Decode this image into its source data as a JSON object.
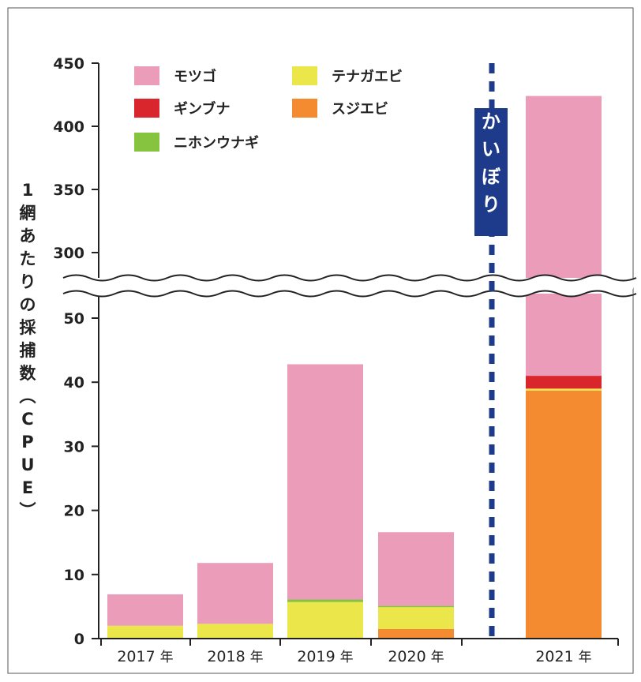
{
  "chart_data": {
    "type": "bar",
    "stacked": true,
    "broken_axis": true,
    "ylabel": "1網あたりの採捕数(CPUE)",
    "categories": [
      "2017年",
      "2018年",
      "2019年",
      "2020年",
      "2021年"
    ],
    "category_labels": [
      {
        "year": "2017",
        "suffix": "年"
      },
      {
        "year": "2018",
        "suffix": "年"
      },
      {
        "year": "2019",
        "suffix": "年"
      },
      {
        "year": "2020",
        "suffix": "年"
      },
      {
        "year": "2021",
        "suffix": "年"
      }
    ],
    "yticks_lower": [
      "0",
      "10",
      "20",
      "30",
      "40",
      "50"
    ],
    "yticks_upper": [
      "300",
      "350",
      "400",
      "450"
    ],
    "ylim_lower": [
      0,
      55
    ],
    "ylim_upper": [
      275,
      450
    ],
    "series": [
      {
        "name": "スジエビ",
        "color": "#f58b30",
        "values": [
          0,
          0,
          0,
          1.5,
          38.7
        ]
      },
      {
        "name": "テナガエビ",
        "color": "#ebe64a",
        "values": [
          2.0,
          2.3,
          5.7,
          3.4,
          0.3
        ]
      },
      {
        "name": "ニホンウナギ",
        "color": "#86c440",
        "values": [
          0,
          0,
          0.4,
          0.2,
          0
        ]
      },
      {
        "name": "ギンブナ",
        "color": "#d9262c",
        "values": [
          0,
          0,
          0,
          0,
          2.0
        ]
      },
      {
        "name": "モツゴ",
        "color": "#eb9cb9",
        "values": [
          4.9,
          9.5,
          36.7,
          11.5,
          383.0
        ]
      }
    ],
    "legend_order": [
      "モツゴ",
      "テナガエビ",
      "ギンブナ",
      "スジエビ",
      "ニホンウナギ"
    ],
    "annotation": {
      "text": "かいぼり",
      "position": "between 2020年 and 2021年",
      "color": "#1e3a8a"
    },
    "legend": "top-left",
    "grid": false
  }
}
